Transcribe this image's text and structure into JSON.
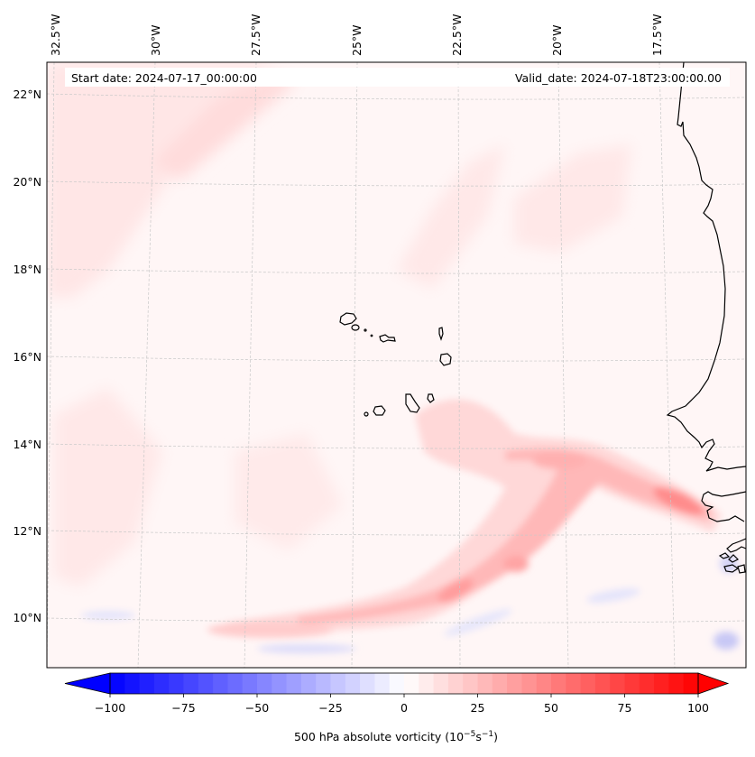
{
  "chart_data": {
    "type": "heatmap",
    "subtype": "filled-contour-map",
    "projection": "Lambert conformal",
    "annotations": {
      "start_date": "Start date: 2024-07-17_00:00:00",
      "valid_date": "Valid_date: 2024-07-18T23:00:00.00"
    },
    "lon_ticks": [
      {
        "value": -32.5,
        "label": "32.5°W"
      },
      {
        "value": -30.0,
        "label": "30°W"
      },
      {
        "value": -27.5,
        "label": "27.5°W"
      },
      {
        "value": -25.0,
        "label": "25°W"
      },
      {
        "value": -22.5,
        "label": "22.5°W"
      },
      {
        "value": -20.0,
        "label": "20°W"
      },
      {
        "value": -17.5,
        "label": "17.5°W"
      }
    ],
    "lat_ticks": [
      {
        "value": 22,
        "label": "22°N"
      },
      {
        "value": 20,
        "label": "20°N"
      },
      {
        "value": 18,
        "label": "18°N"
      },
      {
        "value": 16,
        "label": "16°N"
      },
      {
        "value": 14,
        "label": "14°N"
      },
      {
        "value": 12,
        "label": "12°N"
      },
      {
        "value": 10,
        "label": "10°N"
      }
    ],
    "extent": {
      "lon": [
        -32.6,
        -15.3
      ],
      "lat": [
        8.9,
        22.8
      ]
    },
    "gridlines": true,
    "coastlines": true,
    "features": [
      {
        "name": "Vorticity band (Senegal-Gambia coast)",
        "lon": -17.0,
        "lat": 12.6,
        "value": 55
      },
      {
        "name": "Vorticity band east-west arc",
        "lon": -20.5,
        "lat": 13.7,
        "value": 35
      },
      {
        "name": "Vorticity maximum SW of arc",
        "lon": -22.5,
        "lat": 10.7,
        "value": 45
      },
      {
        "name": "Vorticity maximum",
        "lon": -21.5,
        "lat": 11.3,
        "value": 35
      },
      {
        "name": "Negative vorticity strip",
        "lon": -25.5,
        "lat": 9.2,
        "value": -20
      },
      {
        "name": "Negative vorticity near coast",
        "lon": -15.8,
        "lat": 9.4,
        "value": -25
      }
    ],
    "colorbar": {
      "label": "500 hPa absolute vorticity (10",
      "label_exp1": "−5",
      "label_mid": "s",
      "label_exp2": "−1",
      "label_end": ")",
      "cmap": "bwr",
      "vmin": -100,
      "vmax": 100,
      "levels_step": 5,
      "extend": "both",
      "ticks": [
        {
          "value": -100,
          "label": "−100"
        },
        {
          "value": -75,
          "label": "−75"
        },
        {
          "value": -50,
          "label": "−50"
        },
        {
          "value": -25,
          "label": "−25"
        },
        {
          "value": 0,
          "label": "0"
        },
        {
          "value": 25,
          "label": "25"
        },
        {
          "value": 50,
          "label": "50"
        },
        {
          "value": 75,
          "label": "75"
        },
        {
          "value": 100,
          "label": "100"
        }
      ]
    }
  }
}
